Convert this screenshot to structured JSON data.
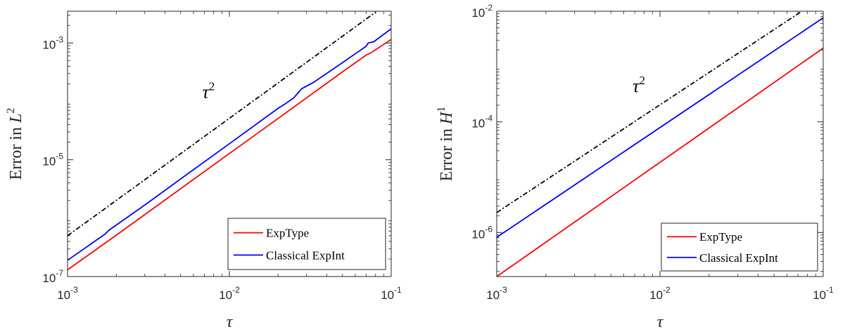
{
  "chart_data": [
    {
      "type": "line",
      "xscale": "log",
      "yscale": "log",
      "xlim": [
        0.001,
        0.1
      ],
      "ylim": [
        1e-07,
        0.0035
      ],
      "xticks": [
        {
          "value": 0.001,
          "base": "10",
          "exp": "-3"
        },
        {
          "value": 0.01,
          "base": "10",
          "exp": "-2"
        },
        {
          "value": 0.1,
          "base": "10",
          "exp": "-1"
        }
      ],
      "yticks": [
        {
          "value": 1e-07,
          "base": "10",
          "exp": "-7"
        },
        {
          "value": 1e-05,
          "base": "10",
          "exp": "-5"
        },
        {
          "value": 0.001,
          "base": "10",
          "exp": "-3"
        }
      ],
      "xlabel": "τ",
      "ylabel": {
        "main": "Error in L",
        "sup": "2"
      },
      "annotation": {
        "main": "τ",
        "sup": "2",
        "x": 0.0068,
        "y": 0.000115
      },
      "legend_position": "bottom-right",
      "series": [
        {
          "name": "ExpType",
          "color": "#ff0000",
          "style": "solid",
          "x": [
            0.001,
            0.002,
            0.005,
            0.01,
            0.02,
            0.05,
            0.07,
            0.075,
            0.1
          ],
          "y": [
            1.3e-07,
            5.1e-07,
            3.2e-06,
            1.28e-05,
            5.1e-05,
            0.00032,
            0.00062,
            0.00068,
            0.00115
          ]
        },
        {
          "name": "Classical ExpInt",
          "color": "#0000ff",
          "style": "solid",
          "x": [
            0.001,
            0.0017,
            0.0018,
            0.003,
            0.005,
            0.01,
            0.02,
            0.022,
            0.025,
            0.028,
            0.033,
            0.05,
            0.07,
            0.072,
            0.078,
            0.1
          ],
          "y": [
            1.9e-07,
            5.3e-07,
            6.2e-07,
            1.68e-06,
            4.7e-06,
            1.88e-05,
            7.6e-05,
            9e-05,
            0.000115,
            0.000165,
            0.00021,
            0.00046,
            0.00088,
            0.001,
            0.00105,
            0.00175
          ]
        },
        {
          "name": "",
          "color": "#000000",
          "style": "dashdot",
          "x": [
            0.001,
            0.0805
          ],
          "y": [
            5e-07,
            0.0034
          ]
        }
      ]
    },
    {
      "type": "line",
      "xscale": "log",
      "yscale": "log",
      "xlim": [
        0.001,
        0.1
      ],
      "ylim": [
        1.6e-07,
        0.01
      ],
      "xticks": [
        {
          "value": 0.001,
          "base": "10",
          "exp": "-3"
        },
        {
          "value": 0.01,
          "base": "10",
          "exp": "-2"
        },
        {
          "value": 0.1,
          "base": "10",
          "exp": "-1"
        }
      ],
      "yticks": [
        {
          "value": 1e-06,
          "base": "10",
          "exp": "-6"
        },
        {
          "value": 0.0001,
          "base": "10",
          "exp": "-4"
        },
        {
          "value": 0.01,
          "base": "10",
          "exp": "-2"
        }
      ],
      "xlabel": "τ",
      "ylabel": {
        "main": "Error in H",
        "sup": "1"
      },
      "annotation": {
        "main": "τ",
        "sup": "2",
        "x": 0.0068,
        "y": 0.00035
      },
      "legend_position": "bottom-right",
      "series": [
        {
          "name": "ExpType",
          "color": "#ff0000",
          "style": "solid",
          "x": [
            0.001,
            0.1
          ],
          "y": [
            1.6e-07,
            0.00215
          ]
        },
        {
          "name": "Classical ExpInt",
          "color": "#0000ff",
          "style": "solid",
          "x": [
            0.001,
            0.1
          ],
          "y": [
            8.2e-07,
            0.0076
          ]
        },
        {
          "name": "",
          "color": "#000000",
          "style": "dashdot",
          "x": [
            0.001,
            0.074
          ],
          "y": [
            2.3e-06,
            0.01
          ]
        }
      ]
    }
  ]
}
